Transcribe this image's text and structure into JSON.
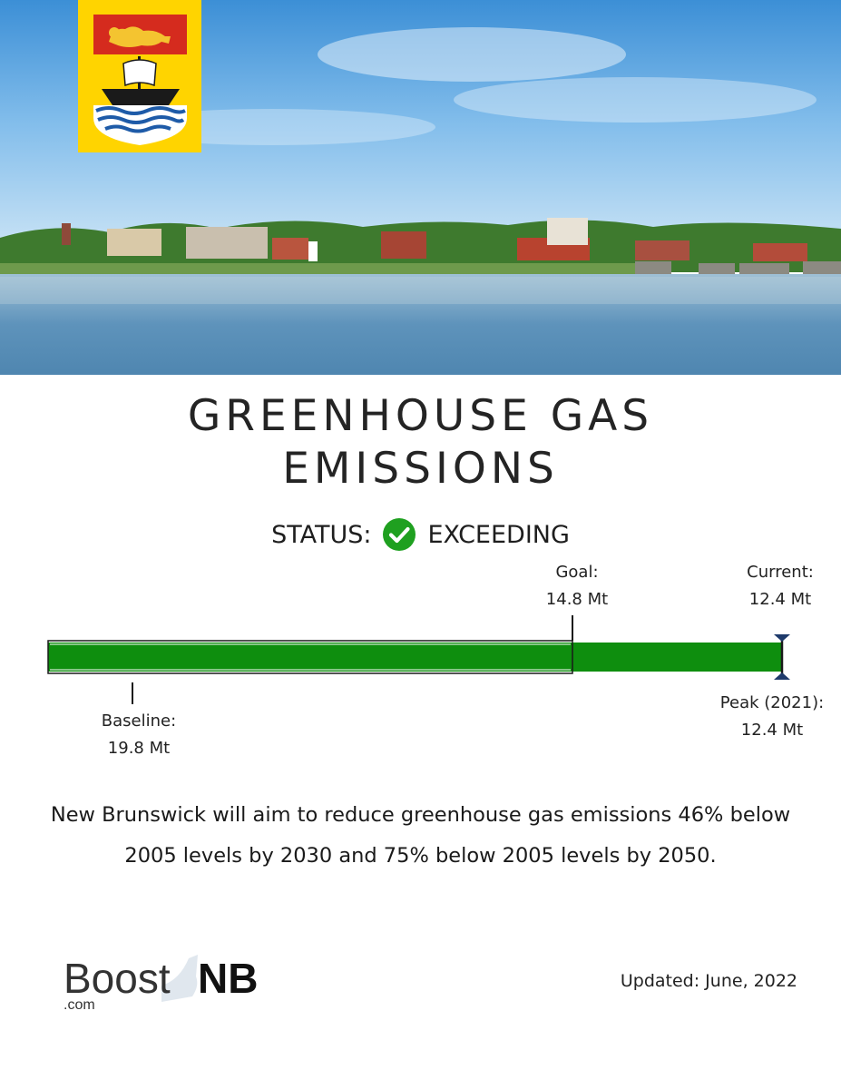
{
  "hero": {
    "image_alt": "Riverside city skyline with blue sky and calm water"
  },
  "flag": {
    "name": "New Brunswick flag",
    "colors": {
      "field": "#FFD400",
      "chief": "#D52B1E",
      "lion": "#F4C430",
      "ship": "#1A1A1A",
      "waves": "#1E5BA8"
    }
  },
  "title": {
    "line1": "GREENHOUSE GAS",
    "line2": "EMISSIONS"
  },
  "status": {
    "label": "STATUS:",
    "value": "EXCEEDING",
    "icon": "check-circle-icon",
    "icon_color": "#1FA020"
  },
  "progress": {
    "bar_color": "#0E8E0E",
    "goal": {
      "label": "Goal:",
      "value": "14.8 Mt"
    },
    "current": {
      "label": "Current:",
      "value": "12.4 Mt"
    },
    "baseline": {
      "label": "Baseline:",
      "value": "19.8 Mt"
    },
    "peak": {
      "label": "Peak (2021):",
      "value": "12.4 Mt"
    }
  },
  "description": "New Brunswick will aim to reduce greenhouse gas emissions 46% below 2005 levels by 2030 and 75% below 2005 levels by 2050.",
  "logo": {
    "brand_light": "Boost",
    "brand_bold": "NB",
    "suffix": ".com"
  },
  "updated": "Updated: June, 2022"
}
